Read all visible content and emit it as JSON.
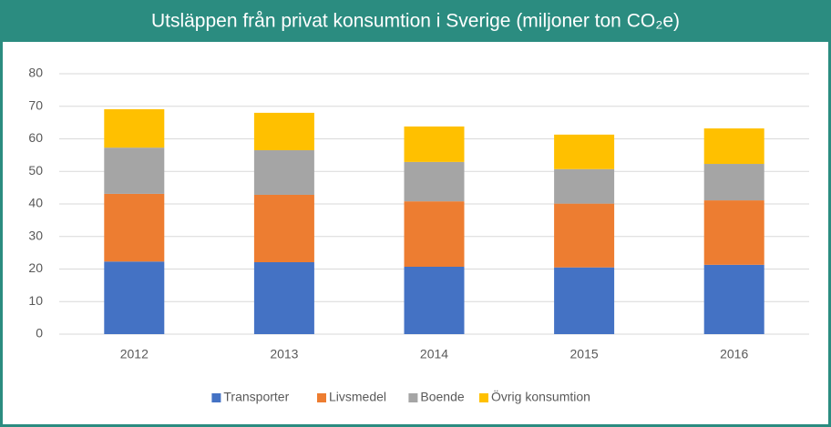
{
  "chart_data": {
    "type": "stacked_bar",
    "title": "Utsläppen från privat konsumtion i Sverige (miljoner ton CO₂e)",
    "categories": [
      "2012",
      "2013",
      "2014",
      "2015",
      "2016"
    ],
    "series": [
      {
        "name": "Transporter",
        "color": "#4472c4",
        "values": [
          22.3,
          22.1,
          20.7,
          20.5,
          21.3
        ]
      },
      {
        "name": "Livsmedel",
        "color": "#ed7d31",
        "values": [
          20.8,
          20.7,
          20.1,
          19.6,
          19.8
        ]
      },
      {
        "name": "Boende",
        "color": "#a5a5a5",
        "values": [
          14.2,
          13.7,
          12.1,
          10.6,
          11.2
        ]
      },
      {
        "name": "Övrig konsumtion",
        "color": "#ffc000",
        "values": [
          11.8,
          11.5,
          10.9,
          10.6,
          10.9
        ]
      }
    ],
    "ylim": [
      0,
      80
    ],
    "yticks": [
      0,
      10,
      20,
      30,
      40,
      50,
      60,
      70,
      80
    ],
    "grid": true,
    "legend": "bottom"
  }
}
